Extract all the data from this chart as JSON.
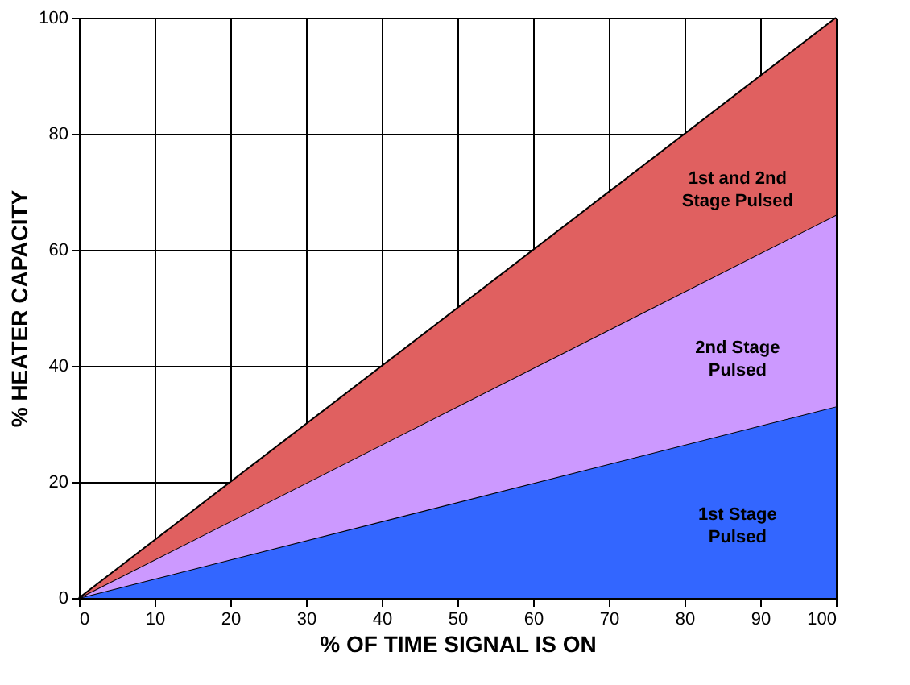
{
  "chart_data": {
    "type": "area",
    "stacked": true,
    "xlabel": "% OF TIME SIGNAL IS ON",
    "ylabel": "% HEATER CAPACITY",
    "x": [
      0,
      100
    ],
    "series": [
      {
        "name": "1st Stage Pulsed",
        "color": "#3366ff",
        "values": [
          0,
          33
        ]
      },
      {
        "name": "2nd Stage Pulsed",
        "color": "#cc99ff",
        "values": [
          0,
          33
        ]
      },
      {
        "name": "1st and 2nd Stage Pulsed",
        "color": "#e06060",
        "values": [
          0,
          34
        ]
      }
    ],
    "xlim": [
      0,
      100
    ],
    "ylim": [
      0,
      100
    ],
    "xticks": [
      0,
      10,
      20,
      30,
      40,
      50,
      60,
      70,
      80,
      90,
      100
    ],
    "yticks": [
      0,
      20,
      40,
      60,
      80,
      100
    ],
    "grid": true,
    "legend": false
  }
}
